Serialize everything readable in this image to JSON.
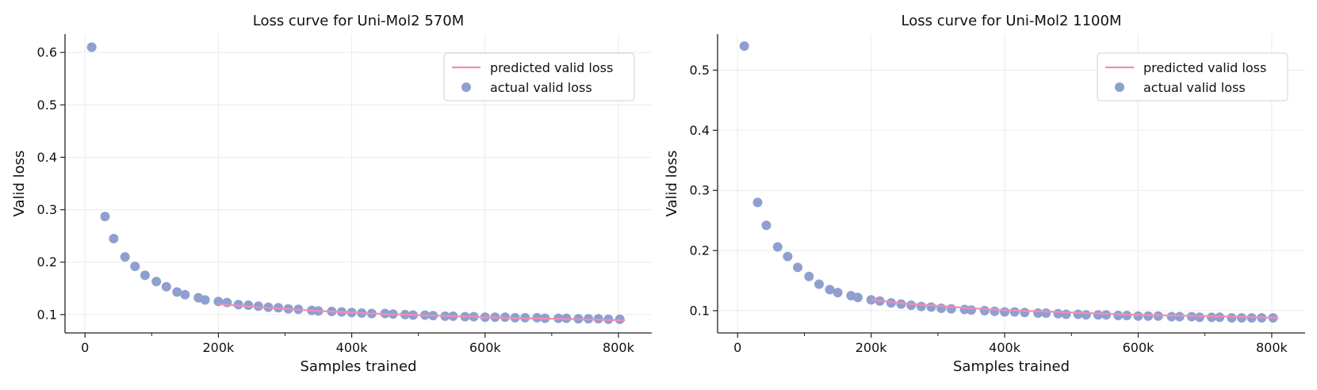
{
  "chart_data": [
    {
      "type": "line+scatter",
      "title": "Loss curve for Uni-Mol2 570M",
      "xlabel": "Samples trained",
      "ylabel": "Valid loss",
      "xlim": [
        -30000,
        850000
      ],
      "ylim": [
        0.065,
        0.635
      ],
      "xticks": [
        0,
        200000,
        400000,
        600000,
        800000
      ],
      "xtick_labels": [
        "0",
        "200k",
        "400k",
        "600k",
        "800k"
      ],
      "yticks": [
        0.1,
        0.2,
        0.3,
        0.4,
        0.5,
        0.6
      ],
      "ytick_labels": [
        "0.1",
        "0.2",
        "0.3",
        "0.4",
        "0.5",
        "0.6"
      ],
      "grid": true,
      "legend_position": "top-right",
      "series": [
        {
          "name": "predicted valid loss",
          "kind": "line",
          "color": "#ee8fb3",
          "x": [
            200000,
            250000,
            300000,
            350000,
            400000,
            450000,
            500000,
            550000,
            600000,
            650000,
            700000,
            750000,
            810000
          ],
          "y": [
            0.12,
            0.115,
            0.111,
            0.107,
            0.104,
            0.101,
            0.099,
            0.097,
            0.095,
            0.093,
            0.092,
            0.091,
            0.089
          ]
        },
        {
          "name": "actual valid loss",
          "kind": "scatter",
          "color": "#8f9fcf",
          "x": [
            10000,
            30000,
            43000,
            60000,
            75000,
            90000,
            107000,
            122000,
            138000,
            150000,
            170000,
            180000,
            200000,
            213000,
            230000,
            245000,
            260000,
            275000,
            290000,
            305000,
            320000,
            340000,
            350000,
            370000,
            385000,
            400000,
            415000,
            430000,
            450000,
            462000,
            480000,
            492000,
            510000,
            522000,
            540000,
            552000,
            570000,
            583000,
            600000,
            615000,
            630000,
            645000,
            660000,
            678000,
            690000,
            710000,
            722000,
            740000,
            755000,
            770000,
            785000,
            802000
          ],
          "y": [
            0.61,
            0.287,
            0.245,
            0.21,
            0.192,
            0.175,
            0.163,
            0.153,
            0.143,
            0.138,
            0.132,
            0.128,
            0.125,
            0.123,
            0.119,
            0.118,
            0.116,
            0.114,
            0.113,
            0.111,
            0.11,
            0.108,
            0.107,
            0.106,
            0.105,
            0.104,
            0.103,
            0.102,
            0.102,
            0.101,
            0.1,
            0.099,
            0.099,
            0.098,
            0.097,
            0.097,
            0.096,
            0.096,
            0.095,
            0.095,
            0.095,
            0.094,
            0.094,
            0.094,
            0.093,
            0.093,
            0.093,
            0.092,
            0.092,
            0.092,
            0.091,
            0.091
          ]
        }
      ]
    },
    {
      "type": "line+scatter",
      "title": "Loss curve for Uni-Mol2 1100M",
      "xlabel": "Samples trained",
      "ylabel": "Valid loss",
      "xlim": [
        -30000,
        850000
      ],
      "ylim": [
        0.063,
        0.56
      ],
      "xticks": [
        0,
        200000,
        400000,
        600000,
        800000
      ],
      "xtick_labels": [
        "0",
        "200k",
        "400k",
        "600k",
        "800k"
      ],
      "yticks": [
        0.1,
        0.2,
        0.3,
        0.4,
        0.5
      ],
      "ytick_labels": [
        "0.1",
        "0.2",
        "0.3",
        "0.4",
        "0.5"
      ],
      "grid": true,
      "legend_position": "top-right",
      "series": [
        {
          "name": "predicted valid loss",
          "kind": "line",
          "color": "#ee8fb3",
          "x": [
            200000,
            250000,
            300000,
            350000,
            400000,
            450000,
            500000,
            550000,
            600000,
            650000,
            700000,
            750000,
            810000
          ],
          "y": [
            0.118,
            0.112,
            0.108,
            0.104,
            0.101,
            0.099,
            0.097,
            0.095,
            0.093,
            0.092,
            0.091,
            0.09,
            0.088
          ]
        },
        {
          "name": "actual valid loss",
          "kind": "scatter",
          "color": "#8f9fcf",
          "x": [
            10000,
            30000,
            43000,
            60000,
            75000,
            90000,
            107000,
            122000,
            138000,
            150000,
            170000,
            180000,
            200000,
            213000,
            230000,
            245000,
            260000,
            275000,
            290000,
            305000,
            320000,
            340000,
            350000,
            370000,
            385000,
            400000,
            415000,
            430000,
            450000,
            462000,
            480000,
            492000,
            510000,
            522000,
            540000,
            552000,
            570000,
            583000,
            600000,
            615000,
            630000,
            650000,
            662000,
            680000,
            692000,
            710000,
            722000,
            740000,
            755000,
            770000,
            785000,
            802000
          ],
          "y": [
            0.54,
            0.28,
            0.242,
            0.206,
            0.19,
            0.172,
            0.157,
            0.144,
            0.135,
            0.13,
            0.125,
            0.122,
            0.118,
            0.116,
            0.113,
            0.111,
            0.109,
            0.107,
            0.106,
            0.104,
            0.103,
            0.102,
            0.101,
            0.1,
            0.099,
            0.098,
            0.098,
            0.097,
            0.096,
            0.096,
            0.095,
            0.094,
            0.094,
            0.093,
            0.093,
            0.093,
            0.092,
            0.092,
            0.091,
            0.091,
            0.091,
            0.09,
            0.09,
            0.09,
            0.089,
            0.089,
            0.089,
            0.088,
            0.088,
            0.088,
            0.088,
            0.088
          ]
        }
      ]
    }
  ]
}
